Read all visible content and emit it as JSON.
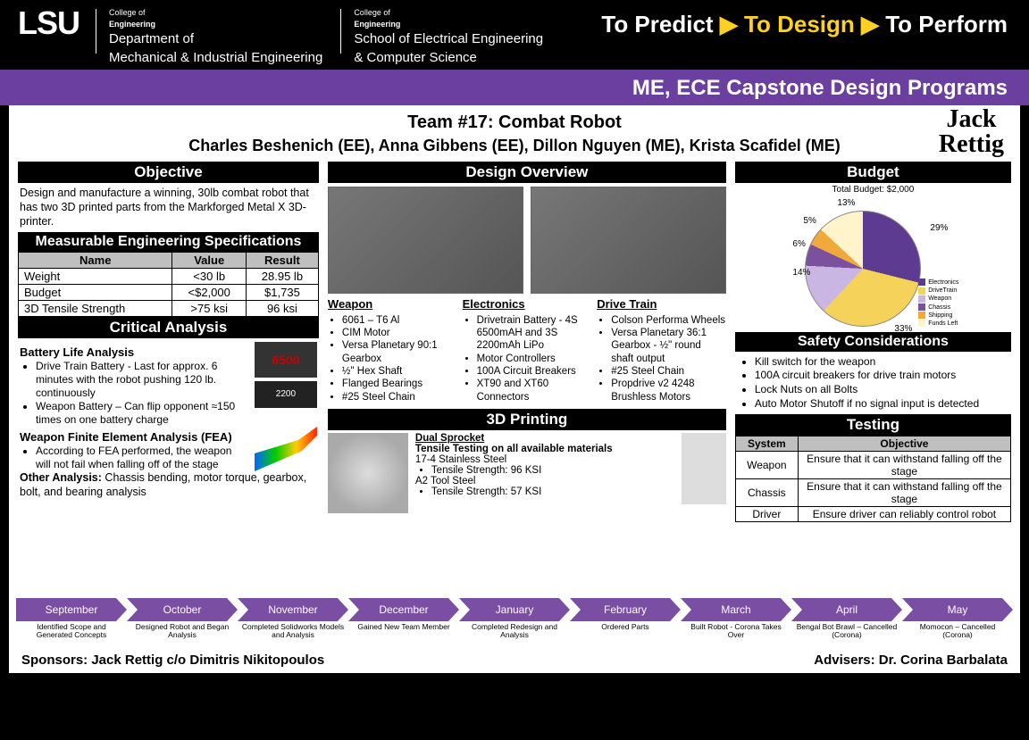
{
  "header": {
    "logo": "LSU",
    "dept1_sub": "College of",
    "dept1_line": "Engineering",
    "dept1_main1": "Department of",
    "dept1_main2": "Mechanical & Industrial Engineering",
    "dept2_sub": "College of",
    "dept2_line": "Engineering",
    "dept2_main1": "School of Electrical Engineering",
    "dept2_main2": "& Computer Science",
    "tag1": "To Predict",
    "tag2": "To Design",
    "tag3": "To Perform",
    "program_title": "ME, ECE Capstone Design Programs"
  },
  "team": {
    "name_line": "Team #17: Combat Robot",
    "members": "Charles Beshenich (EE), Anna Gibbens (EE), Dillon Nguyen (ME), Krista Scafidel (ME)",
    "sponsor_logo1": "Jack",
    "sponsor_logo2": "Rettig"
  },
  "objective": {
    "heading": "Objective",
    "text": "Design and manufacture a winning, 30lb combat robot that has two 3D printed parts from the Markforged Metal X 3D-printer."
  },
  "specs": {
    "heading": "Measurable Engineering Specifications",
    "cols": [
      "Name",
      "Value",
      "Result"
    ],
    "rows": [
      [
        "Weight",
        "<30 lb",
        "28.95 lb"
      ],
      [
        "Budget",
        "<$2,000",
        "$1,735"
      ],
      [
        "3D Tensile Strength",
        ">75 ksi",
        "96 ksi"
      ]
    ]
  },
  "critical": {
    "heading": "Critical Analysis",
    "battery_h": "Battery Life Analysis",
    "battery_items": [
      "Drive Train Battery - Last for approx. 6 minutes with the robot pushing 120 lb. continuously",
      "Weapon Battery – Can flip opponent ≈150 times on one battery charge"
    ],
    "fea_h": "Weapon Finite Element Analysis (FEA)",
    "fea_item": "According to FEA performed, the weapon will not fail when falling off of the stage",
    "other_h": "Other Analysis:",
    "other_txt": " Chassis bending, motor torque, gearbox, bolt, and bearing analysis"
  },
  "design": {
    "heading": "Design Overview",
    "weapon_h": "Weapon",
    "weapon": [
      "6061 – T6 Al",
      "CIM Motor",
      "Versa Planetary 90:1 Gearbox",
      "½\" Hex Shaft",
      "Flanged Bearings",
      "#25 Steel Chain"
    ],
    "elec_h": "Electronics",
    "elec": [
      "Drivetrain Battery - 4S 6500mAH and 3S 2200mAh LiPo",
      "Motor Controllers",
      "100A Circuit Breakers",
      "XT90 and XT60 Connectors"
    ],
    "drive_h": "Drive Train",
    "drive": [
      "Colson Performa Wheels",
      "Versa Planetary 36:1 Gearbox - ½\" round shaft output",
      "#25 Steel Chain",
      "Propdrive v2 4248 Brushless Motors"
    ]
  },
  "printing": {
    "heading": "3D Printing",
    "dual_h": "Dual Sprocket",
    "tensile_h": "Tensile Testing on all available materials",
    "mat1": "17-4 Stainless Steel",
    "mat1_val": "Tensile Strength: 96 KSI",
    "mat2": "A2 Tool Steel",
    "mat2_val": "Tensile Strength: 57 KSI"
  },
  "budget": {
    "heading": "Budget",
    "title": "Total Budget: $2,000",
    "slices": [
      {
        "label": "Electronics",
        "pct": "29%",
        "color": "#5c3b91"
      },
      {
        "label": "DriveTrain",
        "pct": "33%",
        "color": "#f5d35a"
      },
      {
        "label": "Weapon",
        "pct": "14%",
        "color": "#c9b6e3"
      },
      {
        "label": "Chassis",
        "pct": "6%",
        "color": "#7b519d"
      },
      {
        "label": "Shipping",
        "pct": "5%",
        "color": "#f2a93c"
      },
      {
        "label": "Funds Left",
        "pct": "13%",
        "color": "#fff4cc"
      }
    ]
  },
  "safety": {
    "heading": "Safety Considerations",
    "items": [
      "Kill switch for the weapon",
      "100A circuit breakers for drive train motors",
      "Lock Nuts on all Bolts",
      "Auto Motor Shutoff if no signal input is detected"
    ]
  },
  "testing": {
    "heading": "Testing",
    "cols": [
      "System",
      "Objective"
    ],
    "rows": [
      [
        "Weapon",
        "Ensure that it can withstand falling off the stage"
      ],
      [
        "Chassis",
        "Ensure that it can withstand falling off the stage"
      ],
      [
        "Driver",
        "Ensure driver can reliably control robot"
      ]
    ]
  },
  "timeline": [
    {
      "m": "September",
      "sub": "Identified Scope and Generated Concepts"
    },
    {
      "m": "October",
      "sub": "Designed Robot and Began Analysis"
    },
    {
      "m": "November",
      "sub": "Completed Solidworks Models and Analysis"
    },
    {
      "m": "December",
      "sub": "Gained New Team Member"
    },
    {
      "m": "January",
      "sub": "Completed Redesign and Analysis"
    },
    {
      "m": "February",
      "sub": "Ordered Parts"
    },
    {
      "m": "March",
      "sub": "Built Robot - Corona Takes Over"
    },
    {
      "m": "April",
      "sub": "Bengal Bot Brawl – Cancelled (Corona)"
    },
    {
      "m": "May",
      "sub": "Momocon – Cancelled (Corona)"
    }
  ],
  "footer": {
    "sponsors": "Sponsors: Jack Rettig c/o Dimitris Nikitopoulos",
    "advisers": "Advisers: Dr. Corina Barbalata"
  }
}
